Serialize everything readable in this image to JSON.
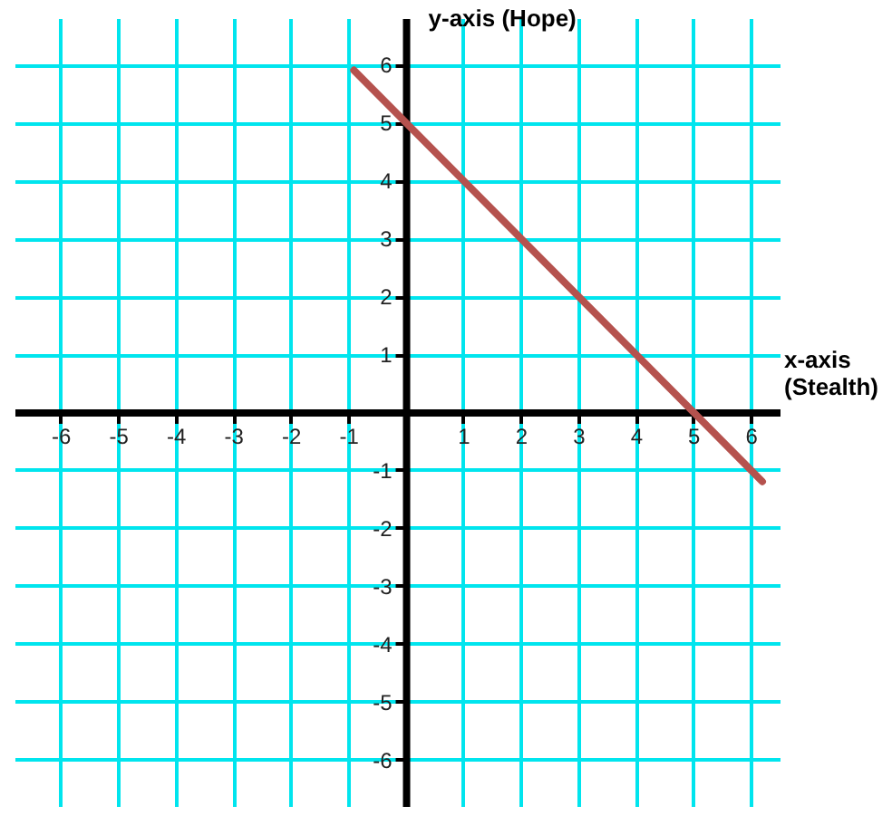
{
  "chart_data": {
    "type": "line",
    "xlabel": "x-axis (Stealth)",
    "ylabel": "y-axis (Hope)",
    "series": [
      {
        "color": "#b5524e",
        "x": [
          -0.9,
          6.2
        ],
        "values": [
          5.9,
          -1.2
        ]
      }
    ],
    "xlim": [
      -6.8,
      6.5
    ],
    "ylim": [
      -6.8,
      6.8
    ],
    "xticks": [
      -6,
      -5,
      -4,
      -3,
      -2,
      -1,
      {
        "value": 0,
        "label": null
      },
      1,
      2,
      3,
      4,
      5,
      6
    ],
    "yticks": [
      -6,
      -5,
      -4,
      -3,
      -2,
      -1,
      {
        "value": 0,
        "label": null
      },
      1,
      2,
      3,
      4,
      5,
      6
    ],
    "grid": true,
    "marker": "none",
    "line_style": "solid"
  }
}
